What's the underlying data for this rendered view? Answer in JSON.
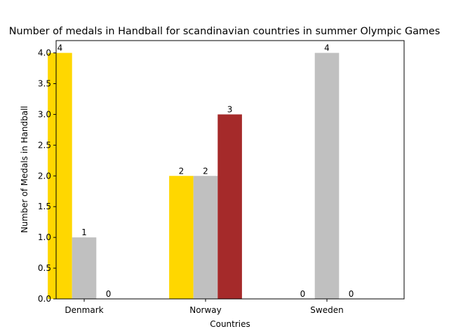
{
  "chart_data": {
    "type": "bar",
    "title": "Number of medals in Handball for scandinavian countries in summer Olympic Games",
    "xlabel": "Countries",
    "ylabel": "Number of Medals in Handball",
    "categories": [
      "Denmark",
      "Norway",
      "Sweden"
    ],
    "series": [
      {
        "key": "gold",
        "values": [
          4,
          2,
          0
        ],
        "color": "#ffd700"
      },
      {
        "key": "silver",
        "values": [
          1,
          2,
          4
        ],
        "color": "#c0c0c0"
      },
      {
        "key": "bronze",
        "values": [
          0,
          3,
          0
        ],
        "color": "#a52a2a"
      }
    ],
    "ylim": [
      0,
      4.2
    ],
    "yticks": [
      "0.0",
      "0.5",
      "1.0",
      "1.5",
      "2.0",
      "2.5",
      "3.0",
      "3.5",
      "4.0"
    ],
    "grid": false,
    "legend": "none"
  }
}
